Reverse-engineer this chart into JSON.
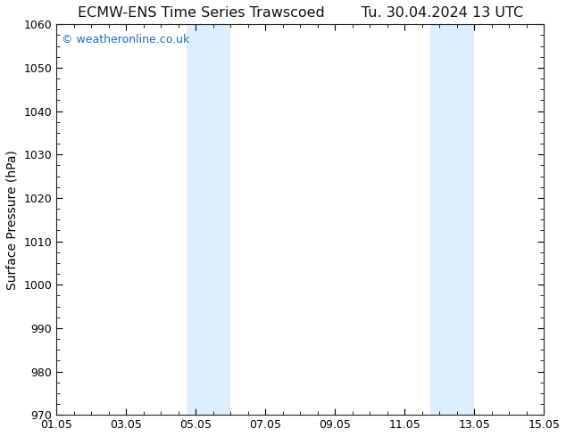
{
  "title_left": "ECMW-ENS Time Series Trawscoed",
  "title_right": "Tu. 30.04.2024 13 UTC",
  "ylabel": "Surface Pressure (hPa)",
  "xlabel_ticks": [
    "01.05",
    "03.05",
    "05.05",
    "07.05",
    "09.05",
    "11.05",
    "13.05",
    "15.05"
  ],
  "xlim": [
    0,
    14
  ],
  "ylim": [
    970,
    1060
  ],
  "yticks": [
    970,
    980,
    990,
    1000,
    1010,
    1020,
    1030,
    1040,
    1050,
    1060
  ],
  "bg_color": "#ffffff",
  "plot_bg_color": "#ffffff",
  "shaded_bands": [
    {
      "xmin": 3.75,
      "xmax": 5.0,
      "color": "#ddeeff"
    },
    {
      "xmin": 10.75,
      "xmax": 12.0,
      "color": "#ddeeff"
    }
  ],
  "watermark_text": "© weatheronline.co.uk",
  "watermark_color": "#1a6fbe",
  "title_fontsize": 11.5,
  "label_fontsize": 10,
  "tick_fontsize": 9,
  "watermark_fontsize": 9
}
